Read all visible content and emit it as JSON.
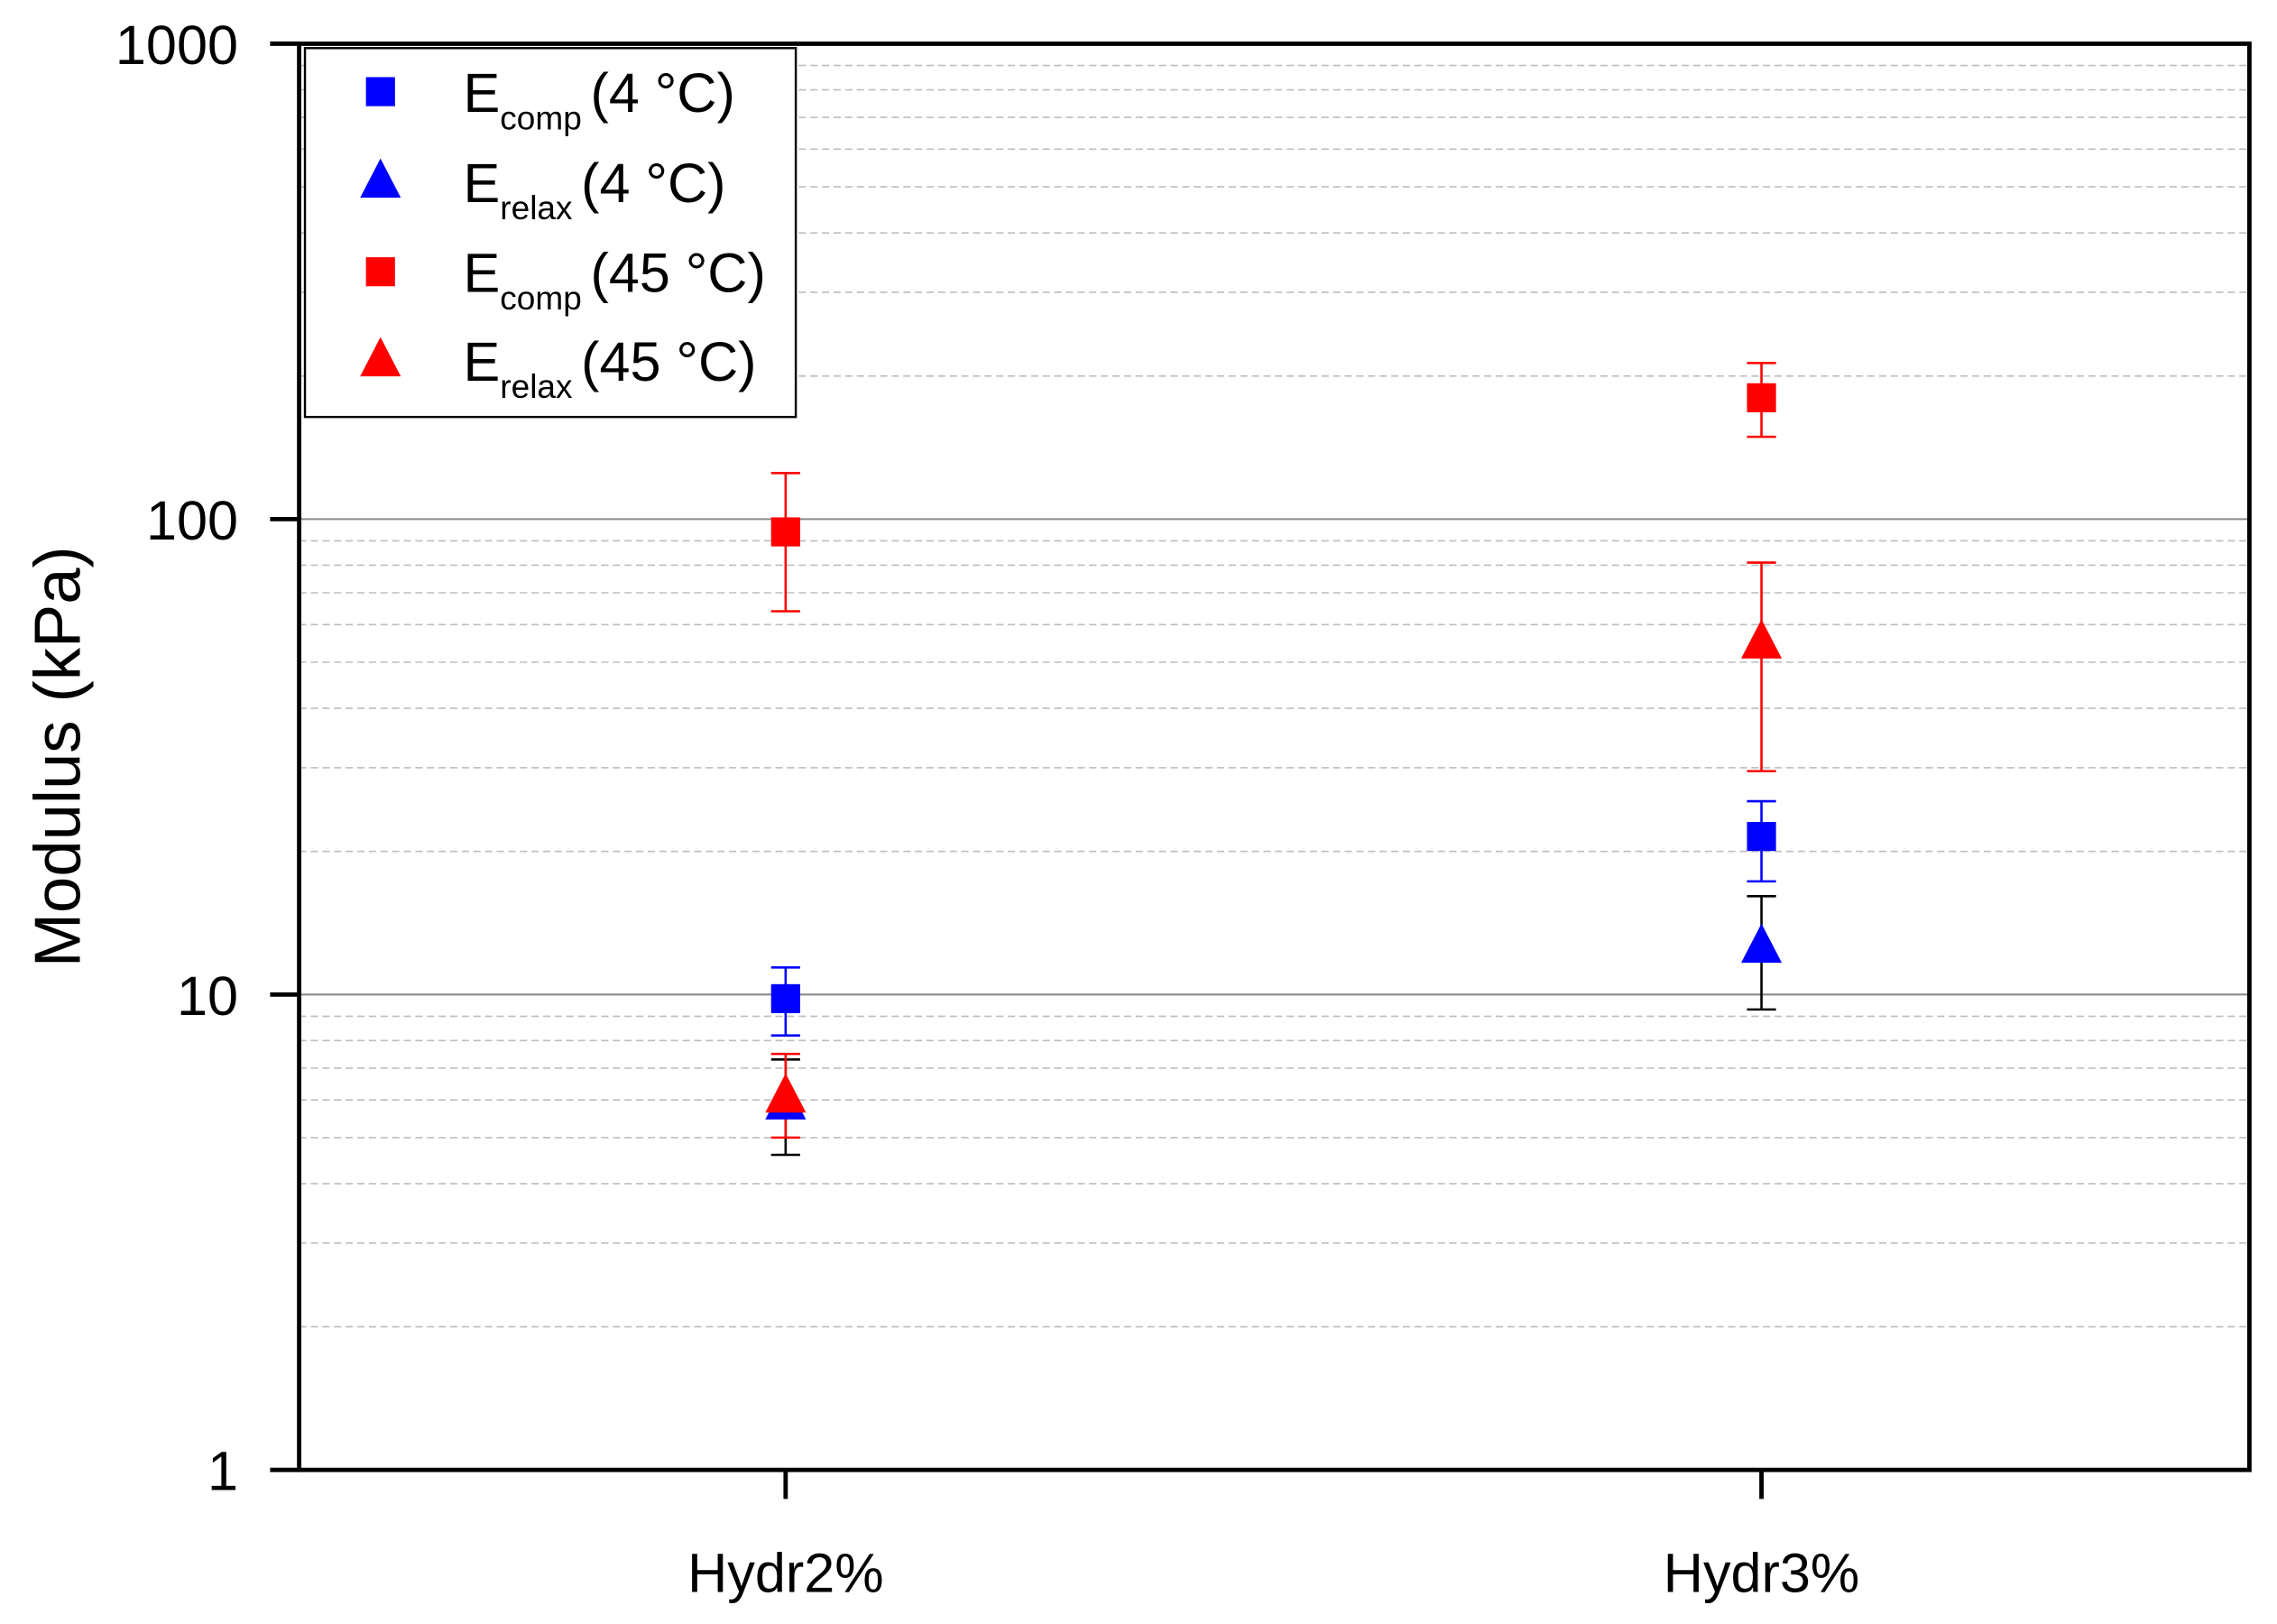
{
  "chart_data": {
    "type": "scatter",
    "title": "",
    "xlabel": "",
    "ylabel": "Modulus (kPa)",
    "yscale": "log",
    "ylim": [
      1,
      1000
    ],
    "y_ticks": [
      {
        "value": 1,
        "label": "1"
      },
      {
        "value": 10,
        "label": "10"
      },
      {
        "value": 100,
        "label": "100"
      },
      {
        "value": 1000,
        "label": "1000"
      }
    ],
    "categories": [
      "Hydr2%",
      "Hydr3%"
    ],
    "grid": {
      "major": true,
      "minor": true
    },
    "legend": {
      "position": "top-left",
      "entries": [
        {
          "base": "E",
          "sub": "comp",
          "suffix": "(4 °C)",
          "color": "#0000ff",
          "marker": "square"
        },
        {
          "base": "E",
          "sub": "relax",
          "suffix": "(4 °C)",
          "color": "#0000ff",
          "marker": "triangle"
        },
        {
          "base": "E",
          "sub": "comp",
          "suffix": "(45 °C)",
          "color": "#ff0000",
          "marker": "square"
        },
        {
          "base": "E",
          "sub": "relax",
          "suffix": "(45 °C)",
          "color": "#ff0000",
          "marker": "triangle"
        }
      ]
    },
    "series": [
      {
        "name": "Ecomp (4 °C)",
        "color": "#0000ff",
        "marker": "square",
        "errorbar_color": "#0000ff",
        "values": [
          9.8,
          21.5
        ],
        "err_low": [
          8.2,
          17.3
        ],
        "err_high": [
          11.4,
          25.5
        ]
      },
      {
        "name": "Erelax (4 °C)",
        "color": "#0000ff",
        "marker": "triangle",
        "errorbar_color": "#000000",
        "values": [
          5.9,
          12.6
        ],
        "err_low": [
          4.6,
          9.3
        ],
        "err_high": [
          7.3,
          16.1
        ]
      },
      {
        "name": "Ecomp (45 °C)",
        "color": "#ff0000",
        "marker": "square",
        "errorbar_color": "#ff0000",
        "values": [
          94,
          180
        ],
        "err_low": [
          64,
          149
        ],
        "err_high": [
          125,
          213
        ]
      },
      {
        "name": "Erelax (45 °C)",
        "color": "#ff0000",
        "marker": "triangle",
        "errorbar_color": "#ff0000",
        "values": [
          6.1,
          55
        ],
        "err_low": [
          5.0,
          29.5
        ],
        "err_high": [
          7.5,
          81
        ]
      }
    ]
  }
}
